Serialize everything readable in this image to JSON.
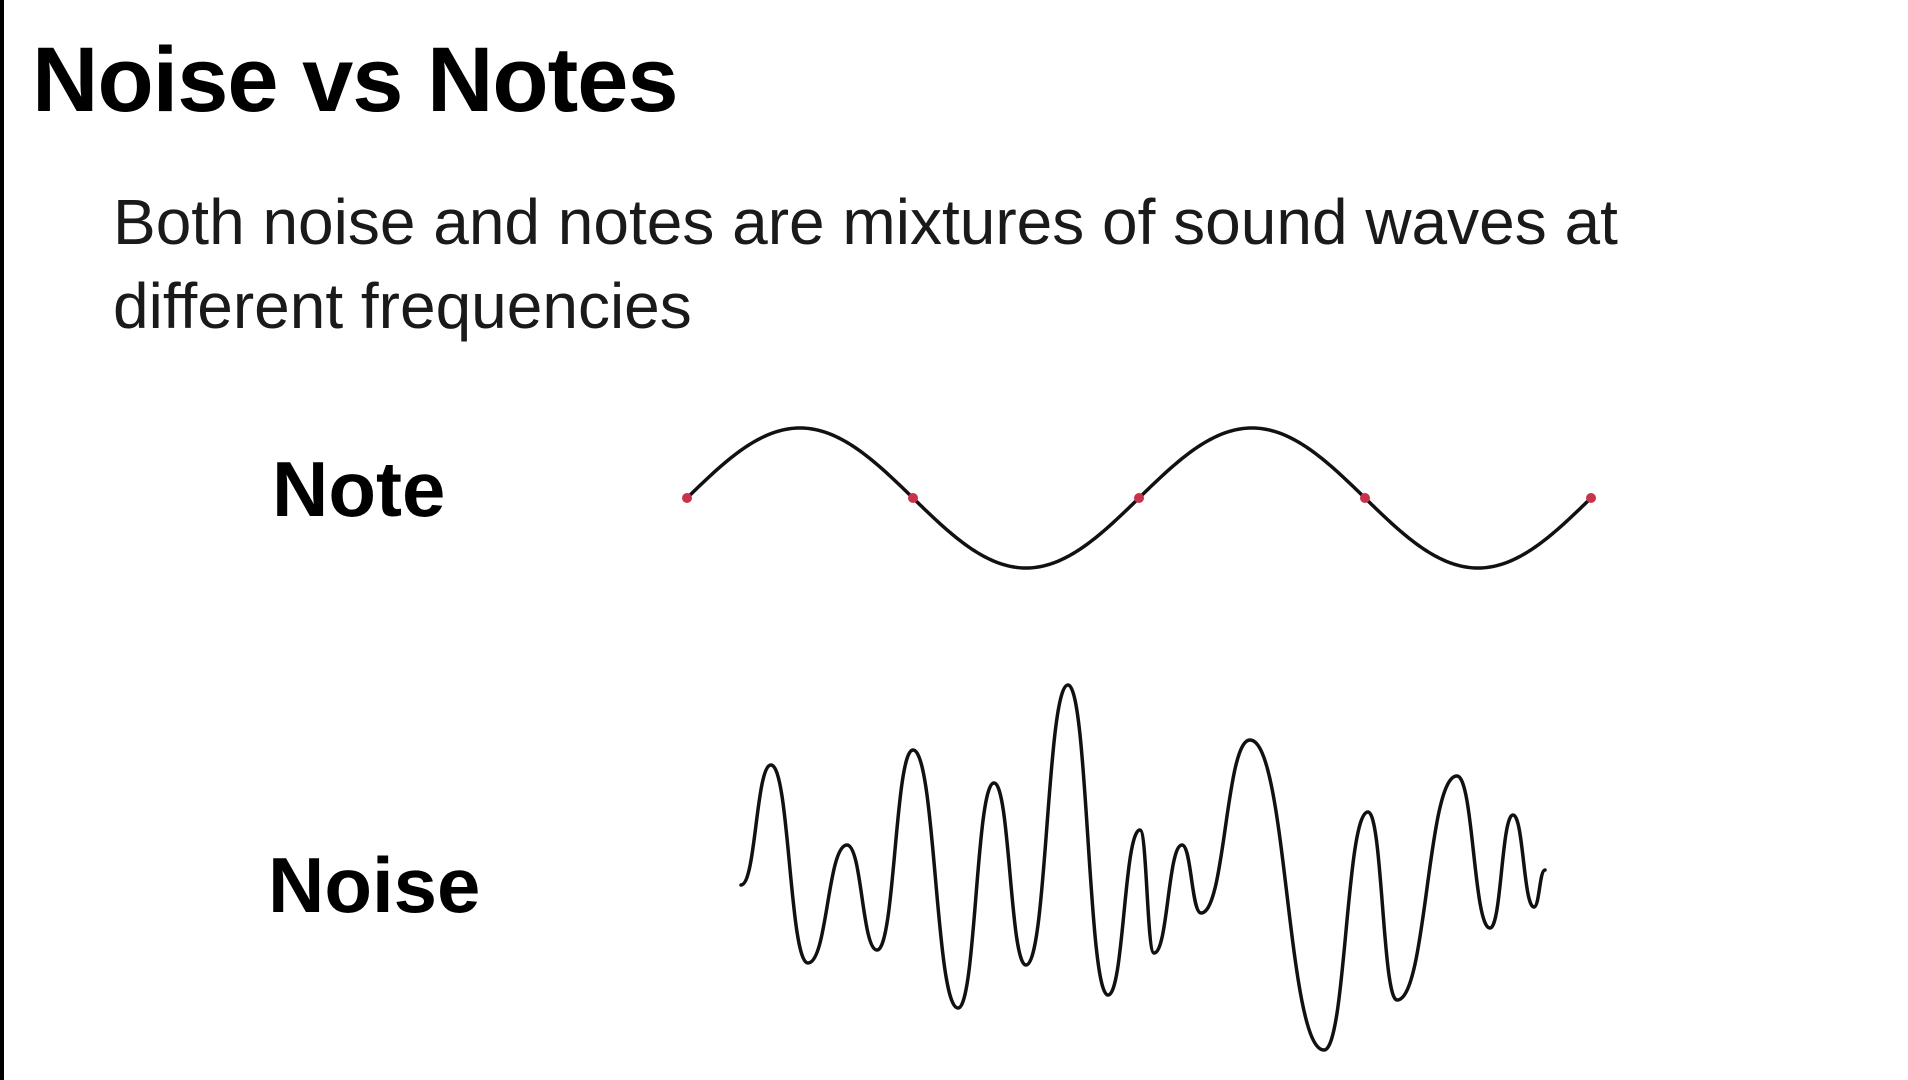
{
  "slide": {
    "title": "Noise vs Notes",
    "text": "Both noise and notes are mixtures of sound waves at different frequencies"
  },
  "waves": {
    "note": {
      "label": "Note",
      "cycles": 2,
      "crossing_markers": 5,
      "marker_color": "#c8324a"
    },
    "noise": {
      "label": "Noise"
    }
  },
  "colors": {
    "background": "#ffffff",
    "text": "#000000",
    "wave_stroke": "#111111"
  }
}
